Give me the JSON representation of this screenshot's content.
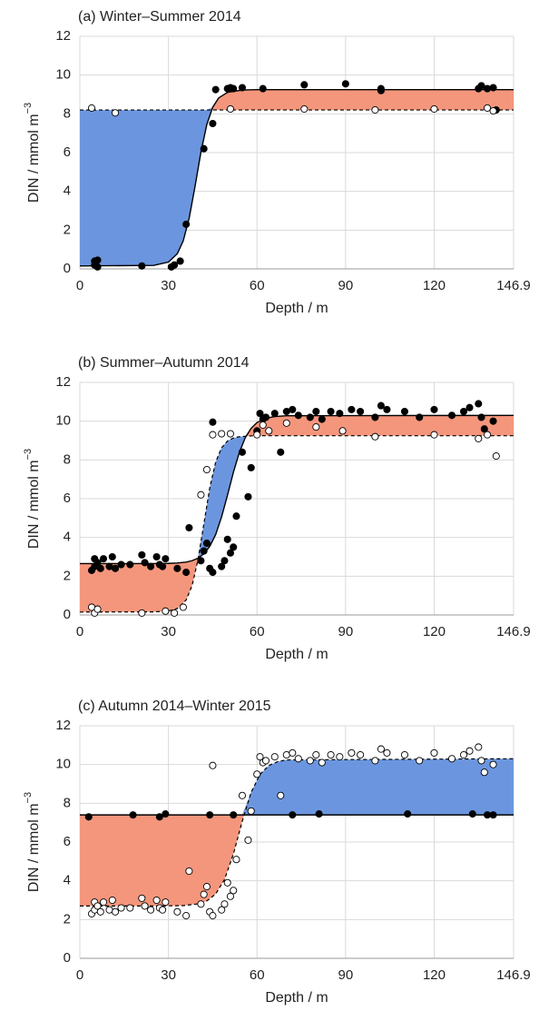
{
  "chart_data": [
    {
      "type": "scatter",
      "title": "(a) Winter–Summer 2014",
      "x_label": "Depth / m",
      "y_label": "DIN / mmol m",
      "y_label_exponent": "−3",
      "xlim": [
        0,
        146.9
      ],
      "ylim": [
        0,
        12
      ],
      "xticks": [
        0,
        30,
        60,
        90,
        120,
        146.9
      ],
      "yticks": [
        0,
        2,
        4,
        6,
        8,
        10,
        12
      ],
      "grid": true,
      "fill_colors": {
        "solid_above": "#f4967c",
        "solid_below": "#6b96df"
      },
      "curve_x": [
        0,
        25,
        30,
        33,
        35,
        37,
        39,
        41,
        43,
        45,
        47,
        50,
        55,
        60,
        146.9
      ],
      "curves": [
        {
          "style": "solid",
          "color": "#000000",
          "values": [
            0.15,
            0.18,
            0.35,
            0.78,
            1.44,
            2.6,
            4.25,
            6.02,
            7.45,
            8.34,
            8.82,
            9.11,
            9.23,
            9.25,
            9.25
          ]
        },
        {
          "style": "dashed",
          "color": "#000000",
          "values": [
            8.2,
            8.2,
            8.2,
            8.2,
            8.2,
            8.2,
            8.2,
            8.2,
            8.2,
            8.2,
            8.2,
            8.2,
            8.2,
            8.2,
            8.2
          ]
        }
      ],
      "series": [
        {
          "marker": "filled",
          "color": "#000000",
          "x": [
            5,
            5,
            6,
            6,
            21,
            31,
            32,
            34,
            36,
            42,
            45,
            46,
            50,
            51,
            52,
            55,
            62,
            76,
            90,
            102,
            102,
            135,
            136,
            138,
            140,
            141
          ],
          "values": [
            0.4,
            0.2,
            0.1,
            0.45,
            0.15,
            0.1,
            0.2,
            0.4,
            2.3,
            6.2,
            7.5,
            9.25,
            9.3,
            9.35,
            9.3,
            9.35,
            9.3,
            9.5,
            9.55,
            9.3,
            9.2,
            9.3,
            9.45,
            9.3,
            9.35,
            8.2
          ]
        },
        {
          "marker": "open",
          "color": "#000000",
          "x": [
            4,
            12,
            51,
            76,
            100,
            120,
            138,
            140
          ],
          "values": [
            8.3,
            8.05,
            8.25,
            8.25,
            8.2,
            8.25,
            8.3,
            8.15
          ]
        }
      ]
    },
    {
      "type": "scatter",
      "title": "(b) Summer–Autumn 2014",
      "x_label": "Depth / m",
      "y_label": "DIN / mmol m",
      "y_label_exponent": "−3",
      "xlim": [
        0,
        146.9
      ],
      "ylim": [
        0,
        12
      ],
      "xticks": [
        0,
        30,
        60,
        90,
        120,
        146.9
      ],
      "yticks": [
        0,
        2,
        4,
        6,
        8,
        10,
        12
      ],
      "grid": true,
      "fill_colors": {
        "solid_above": "#f4967c",
        "solid_below": "#6b96df"
      },
      "curve_x": [
        0,
        25,
        30,
        33,
        36,
        38,
        40,
        42,
        44,
        46,
        48,
        50,
        52,
        54,
        56,
        58,
        60,
        63,
        66,
        70,
        146.9
      ],
      "curves": [
        {
          "style": "solid",
          "color": "#000000",
          "values": [
            2.65,
            2.65,
            2.66,
            2.68,
            2.73,
            2.8,
            2.93,
            3.15,
            3.54,
            4.15,
            5.06,
            6.18,
            7.36,
            8.38,
            9.14,
            9.63,
            9.93,
            10.15,
            10.24,
            10.28,
            10.3
          ]
        },
        {
          "style": "dashed",
          "color": "#000000",
          "values": [
            0.15,
            0.16,
            0.2,
            0.33,
            0.77,
            1.51,
            2.84,
            4.7,
            6.56,
            7.89,
            8.63,
            8.98,
            9.13,
            9.2,
            9.22,
            9.24,
            9.25,
            9.25,
            9.25,
            9.25,
            9.25
          ]
        }
      ],
      "series": [
        {
          "marker": "filled",
          "color": "#000000",
          "x": [
            4,
            5,
            5,
            6,
            7,
            8,
            10,
            11,
            12,
            14,
            17,
            21,
            22,
            24,
            26,
            27,
            28,
            29,
            33,
            36,
            37,
            41,
            42,
            43,
            44,
            45,
            45,
            48,
            49,
            50,
            51,
            52,
            53,
            55,
            57,
            58,
            60,
            61,
            62,
            63,
            66,
            68,
            70,
            72,
            74,
            78,
            80,
            82,
            85,
            88,
            92,
            95,
            100,
            102,
            104,
            110,
            115,
            120,
            126,
            130,
            132,
            135,
            136,
            137,
            140
          ],
          "values": [
            2.3,
            2.5,
            2.9,
            2.7,
            2.4,
            2.9,
            2.5,
            3.0,
            2.4,
            2.6,
            2.6,
            3.1,
            2.7,
            2.5,
            3.0,
            2.6,
            2.5,
            2.9,
            2.4,
            2.2,
            4.5,
            2.8,
            3.3,
            3.7,
            2.4,
            2.2,
            9.95,
            2.5,
            2.8,
            3.9,
            3.2,
            3.5,
            5.1,
            8.4,
            6.1,
            7.6,
            9.5,
            10.4,
            10.1,
            10.2,
            10.4,
            8.4,
            10.5,
            10.6,
            10.3,
            10.2,
            10.5,
            10.1,
            10.5,
            10.4,
            10.6,
            10.5,
            10.2,
            10.8,
            10.6,
            10.5,
            10.2,
            10.6,
            10.3,
            10.5,
            10.7,
            10.9,
            10.2,
            9.6,
            10.0
          ]
        },
        {
          "marker": "open",
          "color": "#000000",
          "x": [
            4,
            5,
            6,
            21,
            29,
            32,
            35,
            41,
            43,
            45,
            48,
            51,
            60,
            62,
            64,
            70,
            80,
            89,
            100,
            120,
            135,
            138,
            141
          ],
          "values": [
            0.4,
            0.1,
            0.3,
            0.1,
            0.2,
            0.1,
            0.4,
            6.2,
            7.5,
            9.3,
            9.35,
            9.35,
            9.3,
            9.8,
            9.5,
            9.9,
            9.7,
            9.5,
            9.2,
            9.3,
            9.1,
            9.3,
            8.2
          ]
        }
      ]
    },
    {
      "type": "scatter",
      "title": "(c) Autumn 2014–Winter 2015",
      "x_label": "Depth / m",
      "y_label": "DIN / mmol m",
      "y_label_exponent": "−3",
      "xlim": [
        0,
        146.9
      ],
      "ylim": [
        0,
        12
      ],
      "xticks": [
        0,
        30,
        60,
        90,
        120,
        146.9
      ],
      "yticks": [
        0,
        2,
        4,
        6,
        8,
        10,
        12
      ],
      "grid": true,
      "fill_colors": {
        "solid_above": "#f4967c",
        "solid_below": "#6b96df"
      },
      "curve_x": [
        0,
        25,
        30,
        35,
        40,
        43,
        46,
        49,
        52,
        55,
        58,
        61,
        64,
        67,
        70,
        146.9
      ],
      "curves": [
        {
          "style": "solid",
          "color": "#000000",
          "values": [
            7.4,
            7.4,
            7.4,
            7.4,
            7.4,
            7.4,
            7.4,
            7.4,
            7.4,
            7.4,
            7.4,
            7.4,
            7.4,
            7.4,
            7.4,
            7.4
          ]
        },
        {
          "style": "dashed",
          "color": "#000000",
          "values": [
            2.7,
            2.7,
            2.71,
            2.72,
            2.81,
            2.96,
            3.32,
            4.07,
            5.38,
            7.07,
            8.56,
            9.49,
            9.95,
            10.15,
            10.24,
            10.3
          ]
        }
      ],
      "series": [
        {
          "marker": "filled",
          "color": "#000000",
          "x": [
            3,
            18,
            27,
            29,
            44,
            52,
            72,
            81,
            111,
            133,
            138,
            140
          ],
          "values": [
            7.3,
            7.4,
            7.3,
            7.45,
            7.4,
            7.4,
            7.4,
            7.45,
            7.45,
            7.45,
            7.4,
            7.4
          ]
        },
        {
          "marker": "open",
          "color": "#000000",
          "x": [
            4,
            5,
            5,
            6,
            7,
            8,
            10,
            11,
            12,
            14,
            17,
            21,
            22,
            24,
            26,
            27,
            28,
            29,
            33,
            36,
            37,
            41,
            42,
            43,
            44,
            45,
            45,
            48,
            49,
            50,
            51,
            52,
            53,
            55,
            57,
            58,
            60,
            61,
            62,
            63,
            66,
            68,
            70,
            72,
            74,
            78,
            80,
            82,
            85,
            88,
            92,
            95,
            100,
            102,
            104,
            110,
            115,
            120,
            126,
            130,
            132,
            135,
            136,
            137,
            140
          ],
          "values": [
            2.3,
            2.5,
            2.9,
            2.7,
            2.4,
            2.9,
            2.5,
            3.0,
            2.4,
            2.6,
            2.6,
            3.1,
            2.7,
            2.5,
            3.0,
            2.6,
            2.5,
            2.9,
            2.4,
            2.2,
            4.5,
            2.8,
            3.3,
            3.7,
            2.4,
            2.2,
            9.95,
            2.5,
            2.8,
            3.9,
            3.2,
            3.5,
            5.1,
            8.4,
            6.1,
            7.6,
            9.5,
            10.4,
            10.1,
            10.2,
            10.4,
            8.4,
            10.5,
            10.6,
            10.3,
            10.2,
            10.5,
            10.1,
            10.5,
            10.4,
            10.6,
            10.5,
            10.2,
            10.8,
            10.6,
            10.5,
            10.2,
            10.6,
            10.3,
            10.5,
            10.7,
            10.9,
            10.2,
            9.6,
            10.0
          ]
        }
      ]
    }
  ]
}
